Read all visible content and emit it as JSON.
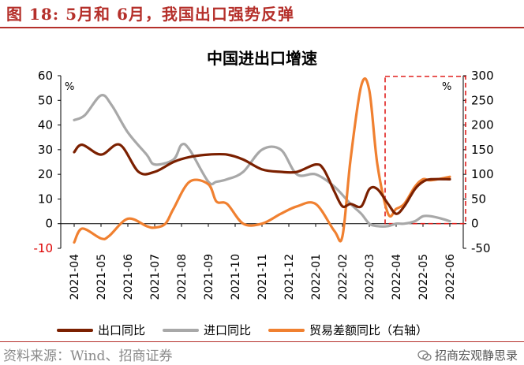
{
  "figure_title": "图 18:  5月和 6月，我国出口强势反弹",
  "source": "资料来源：Wind、招商证券",
  "watermark": "招商宏观静思录",
  "colors": {
    "export": "#7b2000",
    "import": "#a8a8a8",
    "trade": "#f08030",
    "highlight": "#e0201e",
    "title": "#b5302b"
  },
  "chart_data": {
    "type": "line",
    "title": "中国进出口增速",
    "categories": [
      "2021-04",
      "2021-05",
      "2021-06",
      "2021-07",
      "2021-08",
      "2021-09",
      "2021-10",
      "2021-11",
      "2021-12",
      "2022-01",
      "2022-02",
      "2022-03",
      "2022-04",
      "2022-05",
      "2022-06"
    ],
    "left_axis": {
      "ylim": [
        -10,
        60
      ],
      "ticks": [
        "-10",
        "0",
        "10",
        "20",
        "30",
        "40",
        "50",
        "60"
      ],
      "unit": "%"
    },
    "right_axis": {
      "ylim": [
        -50,
        300
      ],
      "ticks": [
        "-50",
        "0",
        "50",
        "100",
        "150",
        "200",
        "250",
        "300"
      ],
      "unit": "%"
    },
    "series": [
      {
        "name": "出口同比",
        "axis": "left",
        "x": [
          0,
          0.3,
          1,
          1.7,
          2.4,
          3,
          3.7,
          4.3,
          5,
          5.7,
          6.3,
          7,
          7.7,
          8.3,
          9,
          9.3,
          9.7,
          10,
          10.3,
          10.7,
          11,
          11.3,
          11.7,
          12,
          12.3,
          12.7,
          13,
          13.3,
          14
        ],
        "values": [
          29,
          32,
          28,
          32,
          21,
          21,
          25,
          27,
          28,
          28,
          26,
          22,
          21,
          21,
          24,
          22,
          13,
          7,
          8,
          7,
          14,
          14,
          8,
          4,
          7,
          14,
          17,
          18,
          18
        ]
      },
      {
        "name": "进口同比",
        "axis": "left",
        "x": [
          0,
          0.4,
          1,
          1.4,
          2,
          2.7,
          3,
          3.7,
          4,
          4.3,
          5,
          5.3,
          5.7,
          6.3,
          7,
          7.7,
          8.3,
          9,
          9.7,
          10.3,
          10.7,
          11,
          11.3,
          11.7,
          12,
          12.3,
          12.7,
          13,
          13.3,
          13.7,
          14
        ],
        "values": [
          42,
          44,
          52,
          48,
          37,
          28,
          24,
          26,
          32,
          30,
          17,
          17,
          18,
          21,
          30,
          30,
          20,
          20,
          15,
          8,
          4,
          0,
          -1,
          -1,
          0,
          0,
          1,
          3,
          3,
          2,
          1
        ]
      },
      {
        "name": "贸易差额同比（右轴）",
        "axis": "right",
        "x": [
          0,
          0.3,
          1,
          1.3,
          2,
          2.7,
          3,
          3.4,
          3.7,
          4.3,
          5,
          5.3,
          5.7,
          6.3,
          7,
          7.7,
          8.3,
          9,
          9.7,
          10,
          10.3,
          10.7,
          11,
          11.3,
          11.7,
          12,
          12.3,
          12.7,
          13,
          13.3,
          14
        ],
        "values": [
          -38,
          -10,
          -30,
          -25,
          10,
          -5,
          -8,
          0,
          30,
          85,
          80,
          45,
          40,
          0,
          0,
          20,
          35,
          40,
          -15,
          -25,
          130,
          280,
          270,
          120,
          20,
          30,
          40,
          75,
          90,
          88,
          95
        ]
      }
    ],
    "highlight_box": {
      "from": "2022-04",
      "to": "2022-06"
    },
    "legend_position": "bottom",
    "grid": false
  }
}
